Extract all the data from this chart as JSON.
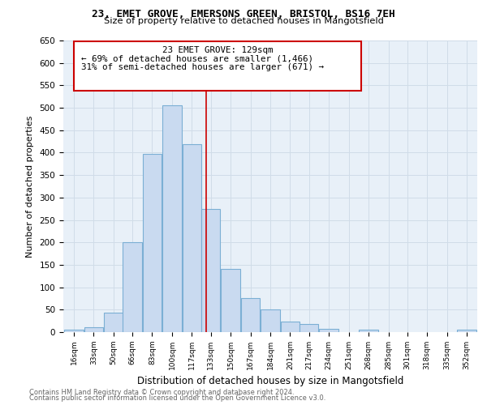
{
  "title1": "23, EMET GROVE, EMERSONS GREEN, BRISTOL, BS16 7EH",
  "title2": "Size of property relative to detached houses in Mangotsfield",
  "xlabel": "Distribution of detached houses by size in Mangotsfield",
  "ylabel": "Number of detached properties",
  "footnote1": "Contains HM Land Registry data © Crown copyright and database right 2024.",
  "footnote2": "Contains public sector information licensed under the Open Government Licence v3.0.",
  "annotation_line1": "23 EMET GROVE: 129sqm",
  "annotation_line2": "← 69% of detached houses are smaller (1,466)",
  "annotation_line3": "31% of semi-detached houses are larger (671) →",
  "bar_centers": [
    16,
    33,
    50,
    66,
    83,
    100,
    117,
    133,
    150,
    167,
    184,
    201,
    217,
    234,
    251,
    268,
    285,
    301,
    318,
    335,
    352
  ],
  "bar_heights": [
    5,
    10,
    44,
    200,
    398,
    505,
    418,
    275,
    140,
    75,
    50,
    24,
    18,
    8,
    0,
    6,
    0,
    0,
    0,
    0,
    5
  ],
  "bar_color": "#c9daf0",
  "bar_edge_color": "#7bafd4",
  "vline_color": "#cc0000",
  "vline_x": 129,
  "box_edge_color": "#cc0000",
  "ylim": [
    0,
    650
  ],
  "yticks": [
    0,
    50,
    100,
    150,
    200,
    250,
    300,
    350,
    400,
    450,
    500,
    550,
    600,
    650
  ],
  "xtick_labels": [
    "16sqm",
    "33sqm",
    "50sqm",
    "66sqm",
    "83sqm",
    "100sqm",
    "117sqm",
    "133sqm",
    "150sqm",
    "167sqm",
    "184sqm",
    "201sqm",
    "217sqm",
    "234sqm",
    "251sqm",
    "268sqm",
    "285sqm",
    "301sqm",
    "318sqm",
    "335sqm",
    "352sqm"
  ],
  "grid_color": "#d0dce8",
  "plot_bg_color": "#e8f0f8"
}
